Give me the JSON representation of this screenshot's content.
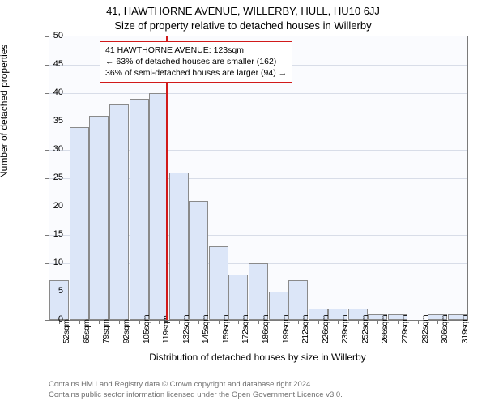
{
  "chart": {
    "type": "histogram",
    "title_main": "41, HAWTHORNE AVENUE, WILLERBY, HULL, HU10 6JJ",
    "title_sub": "Size of property relative to detached houses in Willerby",
    "xlabel": "Distribution of detached houses by size in Willerby",
    "ylabel": "Number of detached properties",
    "background_color": "#fafbfe",
    "grid_color": "#d8dde8",
    "bar_fill": "#dce6f8",
    "bar_border": "#8a8a8a",
    "axis_border": "#7a7a7a",
    "marker_color": "#d11a1a",
    "ylim": [
      0,
      50
    ],
    "ytick_step": 5,
    "yticks": [
      0,
      5,
      10,
      15,
      20,
      25,
      30,
      35,
      40,
      45,
      50
    ],
    "categories": [
      "52sqm",
      "65sqm",
      "79sqm",
      "92sqm",
      "105sqm",
      "119sqm",
      "132sqm",
      "145sqm",
      "159sqm",
      "172sqm",
      "186sqm",
      "199sqm",
      "212sqm",
      "226sqm",
      "239sqm",
      "252sqm",
      "266sqm",
      "279sqm",
      "292sqm",
      "306sqm",
      "319sqm"
    ],
    "values": [
      7,
      34,
      36,
      38,
      39,
      40,
      26,
      21,
      13,
      8,
      10,
      5,
      7,
      2,
      2,
      2,
      1,
      1,
      0,
      1,
      1
    ],
    "marker_position_index": 5.35,
    "info_box": {
      "line1": "41 HAWTHORNE AVENUE: 123sqm",
      "line2": "← 63% of detached houses are smaller (162)",
      "line3": "36% of semi-detached houses are larger (94) →"
    },
    "title_fontsize": 13,
    "label_fontsize": 12,
    "tick_fontsize": 11,
    "xtick_fontsize": 10,
    "info_fontsize": 10.5
  },
  "footer": {
    "line1": "Contains HM Land Registry data © Crown copyright and database right 2024.",
    "line2": "Contains public sector information licensed under the Open Government Licence v3.0.",
    "color": "#707070"
  }
}
